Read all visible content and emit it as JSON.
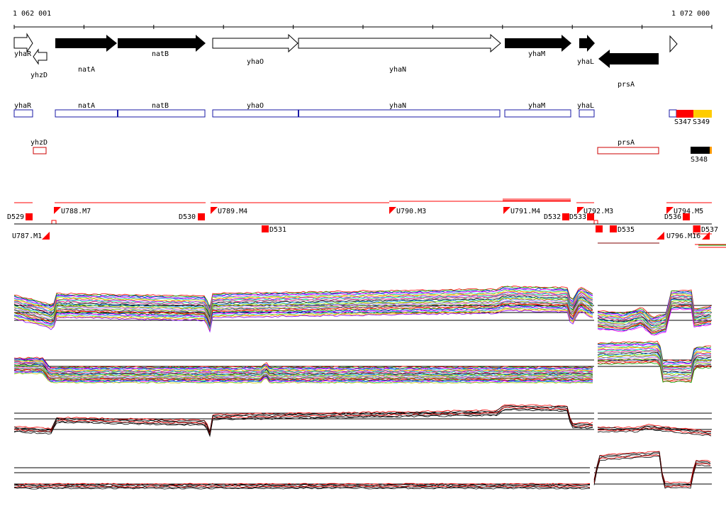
{
  "ruler": {
    "start_label": "1 062 001",
    "end_label": "1 072 000"
  },
  "genes_strand": [
    {
      "name": "yhaR",
      "strand": "+",
      "filled": false
    },
    {
      "name": "yhzD",
      "strand": "-",
      "filled": false
    },
    {
      "name": "natA",
      "strand": "+",
      "filled": true
    },
    {
      "name": "natB",
      "strand": "+",
      "filled": true
    },
    {
      "name": "yhaO",
      "strand": "+",
      "filled": false
    },
    {
      "name": "yhaN",
      "strand": "+",
      "filled": false
    },
    {
      "name": "yhaM",
      "strand": "+",
      "filled": true
    },
    {
      "name": "yhaL",
      "strand": "+",
      "filled": true
    },
    {
      "name": "prsA",
      "strand": "-",
      "filled": true
    }
  ],
  "gene_boxes_plus": [
    "yhaR",
    "natA",
    "natB",
    "yhaO",
    "yhaN",
    "yhaM",
    "yhaL"
  ],
  "gene_boxes_minus": [
    "yhzD",
    "prsA"
  ],
  "small_rnas": [
    "S347",
    "S349",
    "S348"
  ],
  "upshifts": [
    "U787.M1",
    "U788.M7",
    "U789.M4",
    "U790.M3",
    "U791.M4",
    "U792.M3",
    "U794.M5",
    "U796.M16"
  ],
  "downshifts": [
    "D529",
    "D530",
    "D531",
    "D532",
    "D533",
    "D535",
    "D536",
    "D537"
  ],
  "colors": {
    "gene_fill": "#000000",
    "gene_box_plus": "#1a1aa6",
    "gene_box_minus": "#cc0000",
    "shift_marker": "#ff0000",
    "srna_s347": "#ff0000",
    "srna_s349": "#ffcc00",
    "srna_s348": "#000000",
    "srna_s348_tail": "#ff9900"
  }
}
